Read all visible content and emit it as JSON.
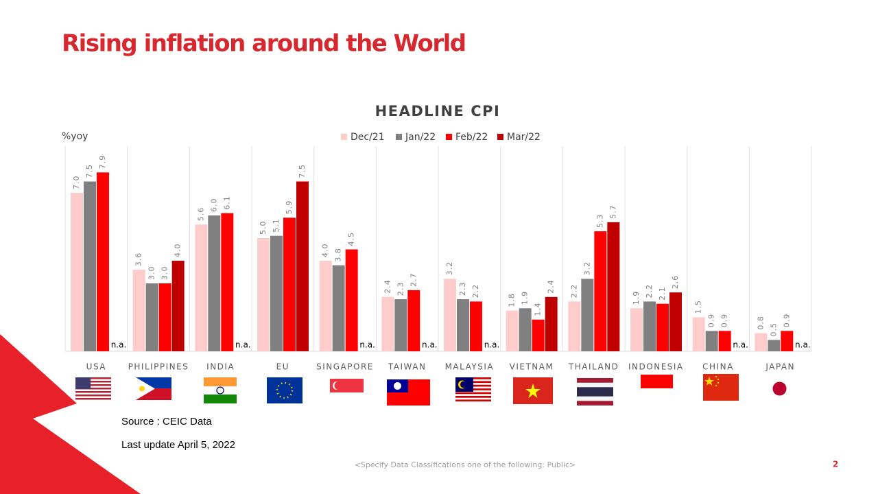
{
  "header": {
    "title": "Rising inflation around the World"
  },
  "chart_data": {
    "type": "bar",
    "title": "HEADLINE CPI",
    "y_label": "%yoy",
    "categories": [
      "USA",
      "PHILIPPINES",
      "INDIA",
      "EU",
      "SINGAPORE",
      "TAIWAN",
      "MALAYSIA",
      "VIETNAM",
      "THAILAND",
      "INDONESIA",
      "CHINA",
      "JAPAN"
    ],
    "series": [
      {
        "name": "Dec/21",
        "color": "#ffcccc",
        "values": [
          7,
          3.6,
          5.6,
          5,
          4,
          2.4,
          3.2,
          1.8,
          2.2,
          1.9,
          1.5,
          0.8
        ],
        "value_labels": [
          "7.0",
          "3.6",
          "5.6",
          "5.0",
          "4.0",
          "2.4",
          "3.2",
          "1.8",
          "2.2",
          "1.9",
          "1.5",
          "0.8"
        ]
      },
      {
        "name": "Jan/22",
        "color": "#808080",
        "values": [
          7.5,
          3,
          6,
          5.1,
          3.8,
          2.3,
          2.3,
          1.9,
          3.2,
          2.2,
          0.9,
          0.5
        ],
        "value_labels": [
          "7.5",
          "3.0",
          "6.0",
          "5.1",
          "3.8",
          "2.3",
          "2.3",
          "1.9",
          "3.2",
          "2.2",
          "0.9",
          "0.5"
        ]
      },
      {
        "name": "Feb/22",
        "color": "#ff0000",
        "values": [
          7.9,
          3,
          6.1,
          5.9,
          4.5,
          2.7,
          2.2,
          1.4,
          5.3,
          2.1,
          0.9,
          0.9
        ],
        "value_labels": [
          "7.9",
          "3.0",
          "6.1",
          "5.9",
          "4.5",
          "2.7",
          "2.2",
          "1.4",
          "5.3",
          "2.1",
          "0.9",
          "0.9"
        ]
      },
      {
        "name": "Mar/22",
        "color": "#c00000",
        "values": [
          null,
          4,
          null,
          7.5,
          null,
          null,
          null,
          2.4,
          5.7,
          2.6,
          null,
          null
        ],
        "value_labels": [
          "n.a.",
          "4.0",
          "n.a.",
          "7.5",
          "n.a.",
          "n.a.",
          "n.a.",
          "2.4",
          "5.7",
          "2.6",
          "n.a.",
          "n.a."
        ]
      }
    ]
  },
  "footer": {
    "source": "Source : CEIC Data",
    "update": "Last update April 5, 2022",
    "classification": "<Specify Data Classifications one of the following: Public>",
    "page": "2"
  }
}
